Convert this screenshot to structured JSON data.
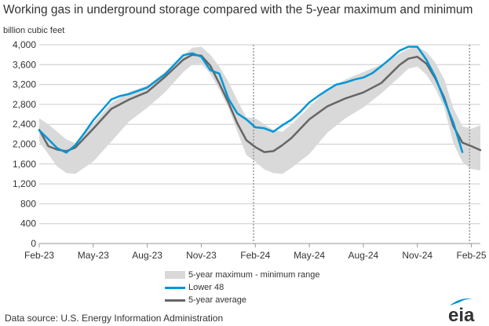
{
  "title": "Working gas in underground  storage compared with the 5-year maximum and minimum",
  "unit_label": "billion cubic feet",
  "legend": {
    "range": "5-year maximum - minimum range",
    "lower48": "Lower 48",
    "average": "5-year average"
  },
  "source": "Data source:  U.S. Energy Information Administration",
  "logo_text": "eia",
  "colors": {
    "lower48": "#0096d7",
    "average": "#666666",
    "range": "#d9d9d9",
    "divider": "#999999"
  },
  "chart_data": {
    "type": "area",
    "title": "Working gas in underground  storage compared with the 5-year maximum and minimum",
    "ylabel": "billion cubic feet",
    "xlabel": "",
    "ylim": [
      0,
      4000
    ],
    "xlim": [
      0,
      24.5
    ],
    "x_unit": "months since Feb-23",
    "y_ticks": [
      0,
      400,
      800,
      1200,
      1600,
      2000,
      2400,
      2800,
      3200,
      3600,
      4000
    ],
    "y_tick_labels": [
      "0",
      "400",
      "800",
      "1,200",
      "1,600",
      "2,000",
      "2,400",
      "2,800",
      "3,200",
      "3,600",
      "4,000"
    ],
    "x_ticks": [
      0,
      3,
      6,
      9,
      12,
      15,
      18,
      21,
      24
    ],
    "x_tick_labels": [
      "Feb-23",
      "May-23",
      "Aug-23",
      "Nov-23",
      "Feb-24",
      "May-24",
      "Aug-24",
      "Nov-24",
      "Feb-25"
    ],
    "dividers": [
      11.9,
      23.9
    ],
    "grid": true,
    "legend_position": "bottom",
    "series": [
      {
        "name": "5-year maximum",
        "x": [
          0,
          0.5,
          1,
          1.5,
          2,
          3,
          4,
          5,
          6,
          7,
          8,
          8.5,
          9,
          9.5,
          10,
          10.5,
          11,
          11.5,
          12,
          12.5,
          13,
          13.5,
          14,
          15,
          16,
          17,
          18,
          19,
          20,
          20.5,
          21,
          21.5,
          22,
          22.5,
          23,
          23.5,
          24,
          24.5
        ],
        "values": [
          2520,
          2400,
          2250,
          2100,
          2020,
          2420,
          2830,
          3050,
          3180,
          3460,
          3790,
          3940,
          3960,
          3800,
          3560,
          3260,
          2880,
          2540,
          2520,
          2400,
          2290,
          2250,
          2390,
          2750,
          3100,
          3300,
          3450,
          3600,
          3820,
          3920,
          3960,
          3860,
          3640,
          3300,
          2720,
          2360,
          2310,
          2380
        ]
      },
      {
        "name": "5-year minimum",
        "x": [
          0,
          0.5,
          1,
          1.5,
          2,
          3,
          4,
          5,
          6,
          7,
          8,
          8.5,
          9,
          9.5,
          10,
          10.5,
          11,
          11.5,
          12,
          12.5,
          13,
          13.5,
          14,
          15,
          16,
          17,
          18,
          19,
          20,
          20.5,
          21,
          21.5,
          22,
          22.5,
          23,
          23.5,
          24,
          24.5
        ],
        "values": [
          2050,
          1800,
          1550,
          1420,
          1400,
          1650,
          2050,
          2460,
          2730,
          3050,
          3450,
          3600,
          3620,
          3420,
          3100,
          2740,
          2260,
          1780,
          1650,
          1490,
          1420,
          1400,
          1520,
          1800,
          2230,
          2520,
          2740,
          3020,
          3350,
          3520,
          3560,
          3400,
          3120,
          2730,
          2020,
          1640,
          1500,
          1470
        ]
      },
      {
        "name": "Lower 48",
        "x": [
          0,
          0.5,
          1,
          1.5,
          2,
          2.5,
          3,
          4,
          4.5,
          5,
          6,
          7,
          8,
          8.5,
          9,
          9.5,
          10,
          10.5,
          11,
          11.5,
          12,
          12.5,
          13,
          13.5,
          14,
          14.5,
          15,
          15.5,
          16,
          16.5,
          17,
          17.5,
          18,
          18.5,
          19,
          19.5,
          20,
          20.5,
          21,
          21.5,
          22,
          22.5,
          23,
          23.5
        ],
        "values": [
          2280,
          2100,
          1920,
          1830,
          1980,
          2220,
          2480,
          2900,
          2970,
          3010,
          3140,
          3410,
          3790,
          3830,
          3760,
          3490,
          3420,
          2920,
          2620,
          2500,
          2340,
          2320,
          2250,
          2380,
          2490,
          2650,
          2840,
          2970,
          3090,
          3200,
          3240,
          3300,
          3340,
          3430,
          3570,
          3720,
          3880,
          3960,
          3960,
          3700,
          3350,
          2880,
          2430,
          1840
        ]
      },
      {
        "name": "5-year average",
        "x": [
          0,
          0.5,
          1,
          1.5,
          2,
          3,
          4,
          5,
          6,
          7,
          8,
          8.5,
          9,
          9.5,
          10,
          10.5,
          11,
          11.5,
          12,
          12.5,
          13,
          13.5,
          14,
          15,
          16,
          17,
          18,
          19,
          20,
          20.5,
          21,
          21.5,
          22,
          22.5,
          23,
          23.5,
          24,
          24.5
        ],
        "values": [
          2290,
          1960,
          1890,
          1860,
          1930,
          2310,
          2710,
          2900,
          3050,
          3360,
          3700,
          3800,
          3780,
          3580,
          3220,
          2840,
          2420,
          2080,
          1940,
          1840,
          1860,
          1980,
          2120,
          2500,
          2760,
          2920,
          3040,
          3230,
          3590,
          3720,
          3760,
          3620,
          3320,
          2930,
          2360,
          2030,
          1960,
          1880
        ]
      }
    ]
  }
}
